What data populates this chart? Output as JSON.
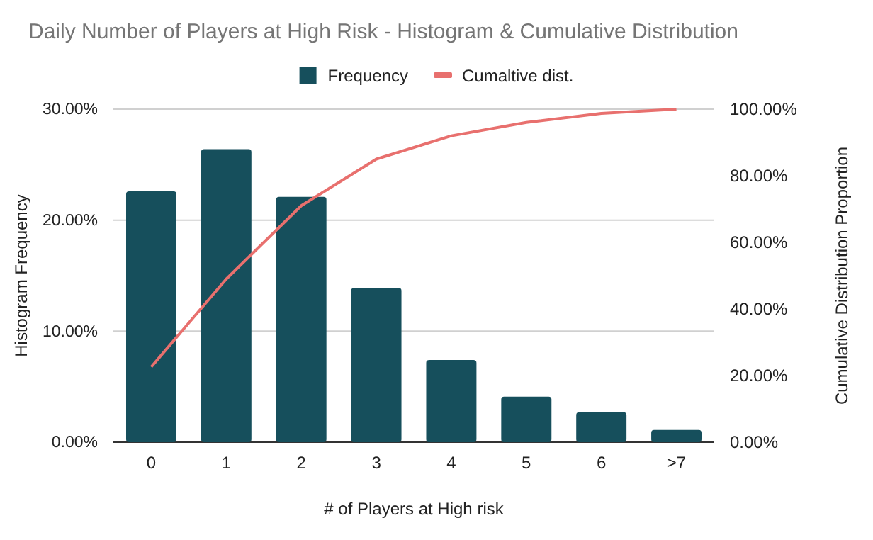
{
  "chart_data": {
    "type": "bar",
    "title": "Daily Number of Players at High Risk - Histogram & Cumulative Distribution",
    "xlabel": "# of Players at High risk",
    "ylabel": "Histogram Frequency",
    "y2label": "Cumulative Distribution Proportion",
    "categories": [
      "0",
      "1",
      "2",
      "3",
      "4",
      "5",
      "6",
      ">7"
    ],
    "series": [
      {
        "name": "Frequency",
        "color": "#164f5c",
        "values": [
          22.6,
          26.4,
          22.1,
          13.9,
          7.4,
          4.1,
          2.7,
          1.1
        ]
      },
      {
        "name": "Cumaltive dist.",
        "type": "line",
        "axis": "y2",
        "color": "#e8706e",
        "values": [
          22.6,
          49,
          71,
          85,
          92,
          96,
          98.7,
          100
        ]
      }
    ],
    "ylim": [
      0,
      30
    ],
    "yticks": [
      {
        "value": 0,
        "label": "0.00%"
      },
      {
        "value": 10,
        "label": "10.00%"
      },
      {
        "value": 20,
        "label": "20.00%"
      },
      {
        "value": 30,
        "label": "30.00%"
      }
    ],
    "y2lim": [
      0,
      100
    ],
    "y2ticks": [
      {
        "value": 0,
        "label": "0.00%"
      },
      {
        "value": 20,
        "label": "20.00%"
      },
      {
        "value": 40,
        "label": "40.00%"
      },
      {
        "value": 60,
        "label": "60.00%"
      },
      {
        "value": 80,
        "label": "80.00%"
      },
      {
        "value": 100,
        "label": "100.00%"
      }
    ],
    "grid": "y",
    "legend": "top",
    "marker": "none"
  }
}
